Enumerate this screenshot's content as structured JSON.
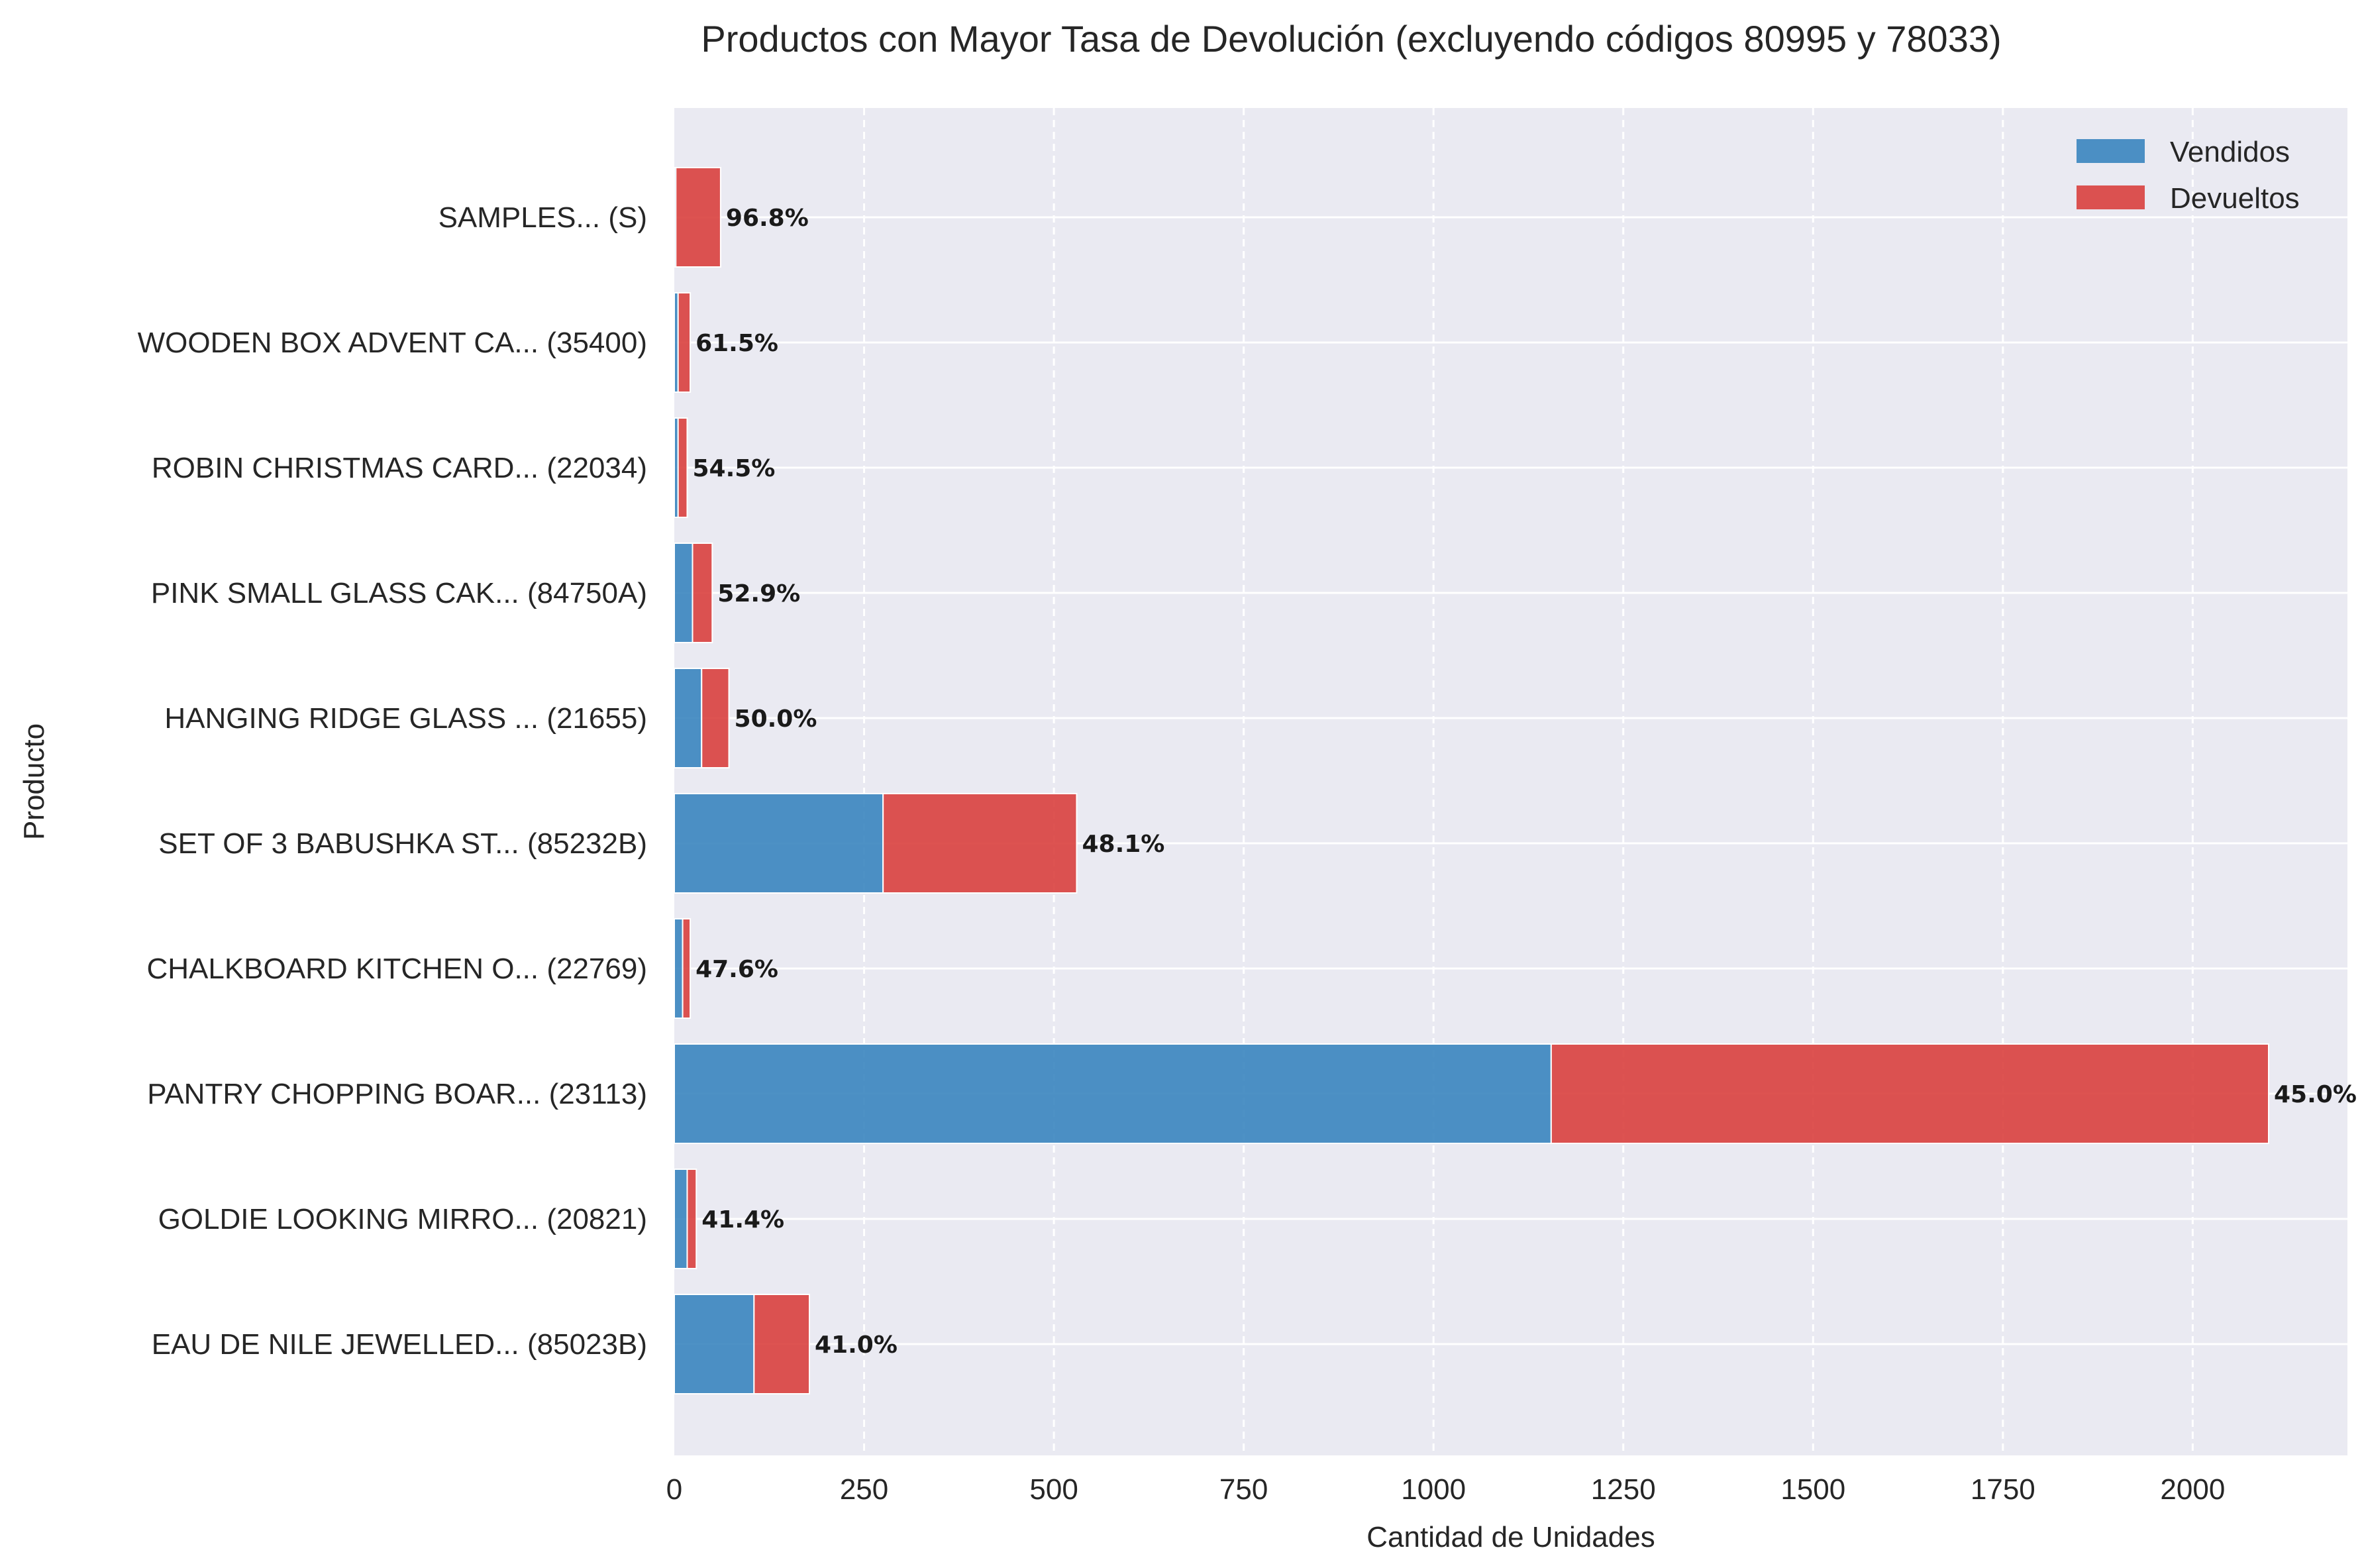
{
  "chart_data": {
    "type": "bar",
    "orientation": "horizontal",
    "stacked": true,
    "title": "Productos con Mayor Tasa de Devolución (excluyendo códigos 80995 y 78033)",
    "xlabel": "Cantidad de Unidades",
    "ylabel": "Producto",
    "xlim": [
      0,
      2200
    ],
    "xticks": [
      0,
      250,
      500,
      750,
      1000,
      1250,
      1500,
      1750,
      2000
    ],
    "grid": true,
    "legend_position": "top-right",
    "categories": [
      "SAMPLES... (S)",
      "WOODEN BOX ADVENT CA... (35400)",
      "ROBIN CHRISTMAS CARD... (22034)",
      "PINK SMALL GLASS CAK... (84750A)",
      "HANGING RIDGE GLASS ... (21655)",
      "SET OF 3 BABUSHKA ST... (85232B)",
      "CHALKBOARD KITCHEN O... (22769)",
      "PANTRY CHOPPING BOAR... (23113)",
      "GOLDIE LOOKING MIRRO... (20821)",
      "EAU DE NILE JEWELLED... (85023B)"
    ],
    "series": [
      {
        "name": "Vendidos",
        "color": "#3a85bf",
        "values": [
          2,
          5,
          5,
          24,
          36,
          275,
          11,
          1155,
          17,
          105
        ]
      },
      {
        "name": "Devueltos",
        "color": "#d9403e",
        "values": [
          59,
          16,
          12,
          26,
          36,
          255,
          10,
          945,
          12,
          73
        ]
      }
    ],
    "annotations": [
      "96.8%",
      "61.5%",
      "54.5%",
      "52.9%",
      "50.0%",
      "48.1%",
      "47.6%",
      "45.0%",
      "41.4%",
      "41.0%"
    ]
  }
}
